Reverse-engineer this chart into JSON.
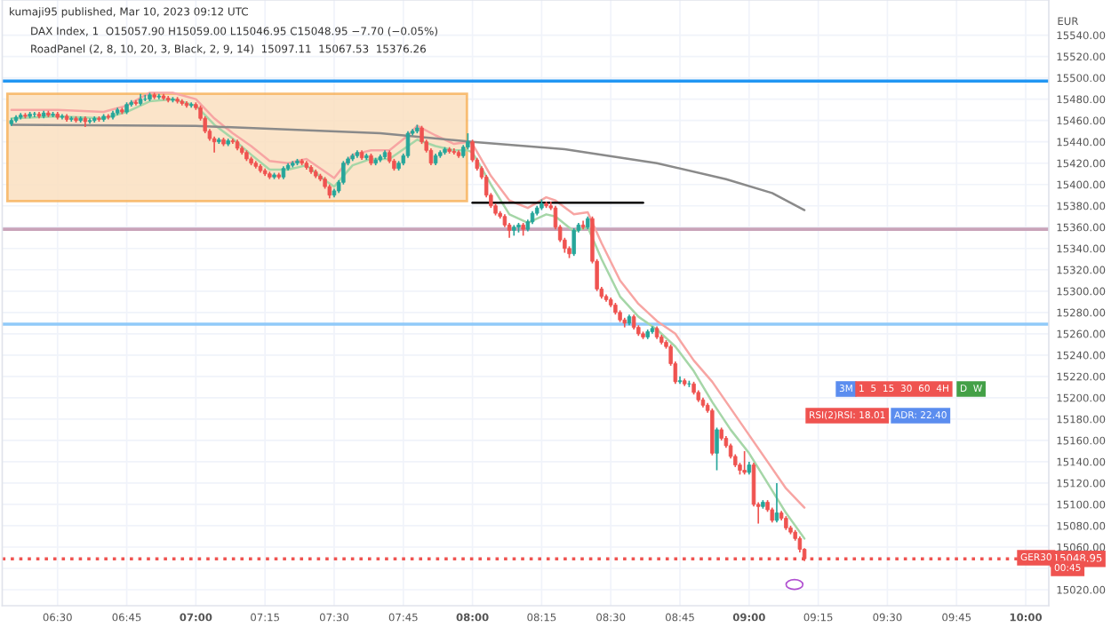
{
  "chart_data": {
    "type": "candlestick",
    "annotations": [
      "kumaji95 published, Mar 10, 2023 09:12 UTC",
      "DAX Index, 1  O15057.90 H15059.00 L15046.95 C15048.95 −7.70 (−0.05%)",
      "RoadPanel (2, 8, 10, 20, 3, Black, 2, 9, 14)  15097.11  15067.53  15376.26",
      "3M",
      "1  5  15  30  60  4H",
      "D  W",
      "RSI(2)RSI: 18.01",
      "ADR: 22.40",
      "GER30",
      "00:45"
    ],
    "ylabel": "EUR",
    "x": [
      "2023-03-10T06:20",
      "2023-03-10T06:21",
      "2023-03-10T06:22",
      "2023-03-10T06:23",
      "2023-03-10T06:24",
      "2023-03-10T06:25",
      "2023-03-10T06:26",
      "2023-03-10T06:27",
      "2023-03-10T06:28",
      "2023-03-10T06:29",
      "2023-03-10T06:30",
      "2023-03-10T06:31",
      "2023-03-10T06:32",
      "2023-03-10T06:33",
      "2023-03-10T06:34",
      "2023-03-10T06:35",
      "2023-03-10T06:36",
      "2023-03-10T06:37",
      "2023-03-10T06:38",
      "2023-03-10T06:39",
      "2023-03-10T06:40",
      "2023-03-10T06:41",
      "2023-03-10T06:42",
      "2023-03-10T06:43",
      "2023-03-10T06:44",
      "2023-03-10T06:45",
      "2023-03-10T06:46",
      "2023-03-10T06:47",
      "2023-03-10T06:48",
      "2023-03-10T06:49",
      "2023-03-10T06:50",
      "2023-03-10T06:51",
      "2023-03-10T06:52",
      "2023-03-10T06:53",
      "2023-03-10T06:54",
      "2023-03-10T06:55",
      "2023-03-10T06:56",
      "2023-03-10T06:57",
      "2023-03-10T06:58",
      "2023-03-10T06:59",
      "2023-03-10T07:00",
      "2023-03-10T07:01",
      "2023-03-10T07:02",
      "2023-03-10T07:03",
      "2023-03-10T07:04",
      "2023-03-10T07:05",
      "2023-03-10T07:06",
      "2023-03-10T07:07",
      "2023-03-10T07:08",
      "2023-03-10T07:09",
      "2023-03-10T07:10",
      "2023-03-10T07:11",
      "2023-03-10T07:12",
      "2023-03-10T07:13",
      "2023-03-10T07:14",
      "2023-03-10T07:15",
      "2023-03-10T07:16",
      "2023-03-10T07:17",
      "2023-03-10T07:18",
      "2023-03-10T07:19",
      "2023-03-10T07:20",
      "2023-03-10T07:21",
      "2023-03-10T07:22",
      "2023-03-10T07:23",
      "2023-03-10T07:24",
      "2023-03-10T07:25",
      "2023-03-10T07:26",
      "2023-03-10T07:27",
      "2023-03-10T07:28",
      "2023-03-10T07:29",
      "2023-03-10T07:30",
      "2023-03-10T07:31",
      "2023-03-10T07:32",
      "2023-03-10T07:33",
      "2023-03-10T07:34",
      "2023-03-10T07:35",
      "2023-03-10T07:36",
      "2023-03-10T07:37",
      "2023-03-10T07:38",
      "2023-03-10T07:39",
      "2023-03-10T07:40",
      "2023-03-10T07:41",
      "2023-03-10T07:42",
      "2023-03-10T07:43",
      "2023-03-10T07:44",
      "2023-03-10T07:45",
      "2023-03-10T07:46",
      "2023-03-10T07:47",
      "2023-03-10T07:48",
      "2023-03-10T07:49",
      "2023-03-10T07:50",
      "2023-03-10T07:51",
      "2023-03-10T07:52",
      "2023-03-10T07:53",
      "2023-03-10T07:54",
      "2023-03-10T07:55",
      "2023-03-10T07:56",
      "2023-03-10T07:57",
      "2023-03-10T07:58",
      "2023-03-10T07:59",
      "2023-03-10T08:00",
      "2023-03-10T08:01",
      "2023-03-10T08:02",
      "2023-03-10T08:03",
      "2023-03-10T08:04",
      "2023-03-10T08:05",
      "2023-03-10T08:06",
      "2023-03-10T08:07",
      "2023-03-10T08:08",
      "2023-03-10T08:09",
      "2023-03-10T08:10",
      "2023-03-10T08:11",
      "2023-03-10T08:12",
      "2023-03-10T08:13",
      "2023-03-10T08:14",
      "2023-03-10T08:15",
      "2023-03-10T08:16",
      "2023-03-10T08:17",
      "2023-03-10T08:18",
      "2023-03-10T08:19",
      "2023-03-10T08:20",
      "2023-03-10T08:21",
      "2023-03-10T08:22",
      "2023-03-10T08:23",
      "2023-03-10T08:24",
      "2023-03-10T08:25",
      "2023-03-10T08:26",
      "2023-03-10T08:27",
      "2023-03-10T08:28",
      "2023-03-10T08:29",
      "2023-03-10T08:30",
      "2023-03-10T08:31",
      "2023-03-10T08:32",
      "2023-03-10T08:33",
      "2023-03-10T08:34",
      "2023-03-10T08:35",
      "2023-03-10T08:36",
      "2023-03-10T08:37",
      "2023-03-10T08:38",
      "2023-03-10T08:39",
      "2023-03-10T08:40",
      "2023-03-10T08:41",
      "2023-03-10T08:42",
      "2023-03-10T08:43",
      "2023-03-10T08:44",
      "2023-03-10T08:45",
      "2023-03-10T08:46",
      "2023-03-10T08:47",
      "2023-03-10T08:48",
      "2023-03-10T08:49",
      "2023-03-10T08:50",
      "2023-03-10T08:51",
      "2023-03-10T08:52",
      "2023-03-10T08:53",
      "2023-03-10T08:54",
      "2023-03-10T08:55",
      "2023-03-10T08:56",
      "2023-03-10T08:57",
      "2023-03-10T08:58",
      "2023-03-10T08:59",
      "2023-03-10T09:00",
      "2023-03-10T09:01",
      "2023-03-10T09:02",
      "2023-03-10T09:03",
      "2023-03-10T09:04",
      "2023-03-10T09:05",
      "2023-03-10T09:06",
      "2023-03-10T09:07",
      "2023-03-10T09:08",
      "2023-03-10T09:09",
      "2023-03-10T09:10",
      "2023-03-10T09:11",
      "2023-03-10T09:12"
    ],
    "ohlc": [
      [
        15457,
        15462,
        15455,
        15460
      ],
      [
        15460,
        15465,
        15458,
        15463
      ],
      [
        15463,
        15467,
        15461,
        15465
      ],
      [
        15465,
        15467,
        15462,
        15464
      ],
      [
        15464,
        15468,
        15462,
        15466
      ],
      [
        15466,
        15468,
        15463,
        15466
      ],
      [
        15466,
        15468,
        15462,
        15464
      ],
      [
        15464,
        15469,
        15462,
        15467
      ],
      [
        15467,
        15469,
        15463,
        15465
      ],
      [
        15465,
        15468,
        15463,
        15466
      ],
      [
        15466,
        15468,
        15461,
        15463
      ],
      [
        15463,
        15466,
        15461,
        15464
      ],
      [
        15464,
        15466,
        15459,
        15461
      ],
      [
        15461,
        15464,
        15459,
        15462
      ],
      [
        15462,
        15464,
        15458,
        15460
      ],
      [
        15460,
        15464,
        15458,
        15462
      ],
      [
        15462,
        15464,
        15454,
        15459
      ],
      [
        15459,
        15462,
        15457,
        15460
      ],
      [
        15460,
        15464,
        15458,
        15462
      ],
      [
        15462,
        15464,
        15459,
        15461
      ],
      [
        15461,
        15466,
        15459,
        15464
      ],
      [
        15464,
        15466,
        15461,
        15463
      ],
      [
        15463,
        15469,
        15461,
        15467
      ],
      [
        15467,
        15472,
        15465,
        15470
      ],
      [
        15470,
        15472,
        15466,
        15468
      ],
      [
        15468,
        15477,
        15466,
        15475
      ],
      [
        15475,
        15479,
        15473,
        15477
      ],
      [
        15477,
        15479,
        15474,
        15476
      ],
      [
        15476,
        15485,
        15474,
        15480
      ],
      [
        15480,
        15484,
        15478,
        15480
      ],
      [
        15480,
        15486,
        15478,
        15484
      ],
      [
        15484,
        15486,
        15480,
        15482
      ],
      [
        15482,
        15485,
        15480,
        15483
      ],
      [
        15483,
        15485,
        15479,
        15481
      ],
      [
        15481,
        15483,
        15477,
        15479
      ],
      [
        15479,
        15482,
        15477,
        15480
      ],
      [
        15480,
        15482,
        15476,
        15478
      ],
      [
        15478,
        15480,
        15474,
        15476
      ],
      [
        15476,
        15478,
        15472,
        15474
      ],
      [
        15474,
        15477,
        15472,
        15475
      ],
      [
        15475,
        15477,
        15470,
        15472
      ],
      [
        15472,
        15474,
        15460,
        15462
      ],
      [
        15462,
        15464,
        15448,
        15450
      ],
      [
        15450,
        15452,
        15441,
        15443
      ],
      [
        15443,
        15445,
        15430,
        15440
      ],
      [
        15440,
        15444,
        15438,
        15442
      ],
      [
        15442,
        15444,
        15436,
        15438
      ],
      [
        15438,
        15443,
        15436,
        15441
      ],
      [
        15441,
        15443,
        15438,
        15440
      ],
      [
        15440,
        15442,
        15432,
        15434
      ],
      [
        15434,
        15436,
        15428,
        15430
      ],
      [
        15430,
        15432,
        15422,
        15424
      ],
      [
        15424,
        15426,
        15418,
        15420
      ],
      [
        15420,
        15422,
        15415,
        15417
      ],
      [
        15417,
        15419,
        15411,
        15413
      ],
      [
        15413,
        15415,
        15408,
        15410
      ],
      [
        15410,
        15412,
        15405,
        15407
      ],
      [
        15407,
        15411,
        15405,
        15409
      ],
      [
        15409,
        15411,
        15405,
        15407
      ],
      [
        15407,
        15417,
        15405,
        15415
      ],
      [
        15415,
        15420,
        15413,
        15418
      ],
      [
        15418,
        15422,
        15416,
        15420
      ],
      [
        15420,
        15424,
        15418,
        15422
      ],
      [
        15422,
        15424,
        15418,
        15420
      ],
      [
        15420,
        15422,
        15414,
        15416
      ],
      [
        15416,
        15418,
        15410,
        15412
      ],
      [
        15412,
        15414,
        15406,
        15408
      ],
      [
        15408,
        15410,
        15403,
        15405
      ],
      [
        15405,
        15407,
        15396,
        15398
      ],
      [
        15398,
        15400,
        15387,
        15390
      ],
      [
        15390,
        15396,
        15388,
        15394
      ],
      [
        15394,
        15404,
        15392,
        15402
      ],
      [
        15402,
        15422,
        15400,
        15420
      ],
      [
        15420,
        15426,
        15418,
        15424
      ],
      [
        15424,
        15429,
        15422,
        15427
      ],
      [
        15427,
        15432,
        15425,
        15430
      ],
      [
        15430,
        15432,
        15423,
        15425
      ],
      [
        15425,
        15429,
        15423,
        15427
      ],
      [
        15427,
        15429,
        15418,
        15420
      ],
      [
        15420,
        15425,
        15418,
        15423
      ],
      [
        15423,
        15428,
        15421,
        15426
      ],
      [
        15426,
        15432,
        15424,
        15430
      ],
      [
        15430,
        15432,
        15420,
        15422
      ],
      [
        15422,
        15424,
        15413,
        15415
      ],
      [
        15415,
        15422,
        15413,
        15420
      ],
      [
        15420,
        15429,
        15418,
        15427
      ],
      [
        15427,
        15450,
        15425,
        15448
      ],
      [
        15448,
        15452,
        15446,
        15450
      ],
      [
        15450,
        15456,
        15448,
        15453
      ],
      [
        15453,
        15455,
        15438,
        15440
      ],
      [
        15440,
        15442,
        15430,
        15432
      ],
      [
        15432,
        15434,
        15418,
        15420
      ],
      [
        15420,
        15429,
        15418,
        15427
      ],
      [
        15427,
        15432,
        15425,
        15430
      ],
      [
        15430,
        15435,
        15428,
        15433
      ],
      [
        15433,
        15435,
        15429,
        15431
      ],
      [
        15431,
        15434,
        15428,
        15430
      ],
      [
        15430,
        15432,
        15425,
        15427
      ],
      [
        15427,
        15437,
        15425,
        15435
      ],
      [
        15435,
        15448,
        15433,
        15440
      ],
      [
        15440,
        15442,
        15421,
        15423
      ],
      [
        15423,
        15425,
        15413,
        15415
      ],
      [
        15415,
        15417,
        15405,
        15407
      ],
      [
        15407,
        15409,
        15388,
        15390
      ],
      [
        15390,
        15392,
        15378,
        15380
      ],
      [
        15380,
        15382,
        15371,
        15373
      ],
      [
        15373,
        15375,
        15368,
        15370
      ],
      [
        15370,
        15372,
        15360,
        15362
      ],
      [
        15362,
        15364,
        15350,
        15357
      ],
      [
        15357,
        15362,
        15352,
        15360
      ],
      [
        15360,
        15364,
        15355,
        15362
      ],
      [
        15362,
        15364,
        15352,
        15358
      ],
      [
        15358,
        15367,
        15356,
        15365
      ],
      [
        15365,
        15375,
        15363,
        15373
      ],
      [
        15373,
        15380,
        15371,
        15378
      ],
      [
        15378,
        15386,
        15376,
        15382
      ],
      [
        15382,
        15384,
        15378,
        15380
      ],
      [
        15380,
        15384,
        15376,
        15378
      ],
      [
        15378,
        15380,
        15358,
        15360
      ],
      [
        15360,
        15362,
        15346,
        15348
      ],
      [
        15348,
        15350,
        15336,
        15340
      ],
      [
        15340,
        15342,
        15331,
        15335
      ],
      [
        15335,
        15359,
        15333,
        15357
      ],
      [
        15357,
        15364,
        15355,
        15362
      ],
      [
        15362,
        15366,
        15358,
        15360
      ],
      [
        15360,
        15370,
        15358,
        15368
      ],
      [
        15368,
        15370,
        15326,
        15328
      ],
      [
        15328,
        15330,
        15300,
        15302
      ],
      [
        15302,
        15304,
        15293,
        15295
      ],
      [
        15295,
        15297,
        15290,
        15292
      ],
      [
        15292,
        15294,
        15285,
        15287
      ],
      [
        15287,
        15289,
        15278,
        15280
      ],
      [
        15280,
        15282,
        15271,
        15273
      ],
      [
        15273,
        15275,
        15266,
        15270
      ],
      [
        15270,
        15278,
        15268,
        15276
      ],
      [
        15276,
        15278,
        15264,
        15266
      ],
      [
        15266,
        15268,
        15258,
        15260
      ],
      [
        15260,
        15262,
        15255,
        15257
      ],
      [
        15257,
        15264,
        15255,
        15262
      ],
      [
        15262,
        15267,
        15260,
        15265
      ],
      [
        15265,
        15267,
        15255,
        15257
      ],
      [
        15257,
        15259,
        15250,
        15252
      ],
      [
        15252,
        15254,
        15246,
        15248
      ],
      [
        15248,
        15250,
        15230,
        15232
      ],
      [
        15232,
        15234,
        15213,
        15215
      ],
      [
        15215,
        15220,
        15213,
        15216
      ],
      [
        15216,
        15218,
        15211,
        15213
      ],
      [
        15213,
        15216,
        15210,
        15213
      ],
      [
        15213,
        15215,
        15203,
        15205
      ],
      [
        15205,
        15207,
        15196,
        15198
      ],
      [
        15198,
        15200,
        15191,
        15193
      ],
      [
        15193,
        15195,
        15186,
        15188
      ],
      [
        15188,
        15190,
        15146,
        15148
      ],
      [
        15148,
        15172,
        15132,
        15170
      ],
      [
        15170,
        15172,
        15160,
        15162
      ],
      [
        15162,
        15164,
        15153,
        15155
      ],
      [
        15155,
        15157,
        15143,
        15145
      ],
      [
        15145,
        15147,
        15135,
        15137
      ],
      [
        15137,
        15139,
        15128,
        15132
      ],
      [
        15132,
        15150,
        15128,
        15130
      ],
      [
        15130,
        15140,
        15128,
        15137
      ],
      [
        15137,
        15139,
        15098,
        15100
      ],
      [
        15100,
        15102,
        15082,
        15098
      ],
      [
        15098,
        15104,
        15096,
        15102
      ],
      [
        15102,
        15104,
        15093,
        15095
      ],
      [
        15095,
        15097,
        15083,
        15085
      ],
      [
        15085,
        15120,
        15083,
        15092
      ],
      [
        15092,
        15094,
        15085,
        15087
      ],
      [
        15087,
        15089,
        15076,
        15078
      ],
      [
        15078,
        15080,
        15072,
        15074
      ],
      [
        15074,
        15076,
        15066,
        15068
      ],
      [
        15068,
        15070,
        15055,
        15057.9
      ],
      [
        15057.9,
        15059,
        15046.95,
        15048.95
      ]
    ],
    "series": [
      {
        "type": "line",
        "color": "#f7a5a3",
        "x": [
          "2023-03-10T06:20",
          "2023-03-10T06:30",
          "2023-03-10T06:40",
          "2023-03-10T06:45",
          "2023-03-10T06:50",
          "2023-03-10T06:55",
          "2023-03-10T07:00",
          "2023-03-10T07:04",
          "2023-03-10T07:08",
          "2023-03-10T07:12",
          "2023-03-10T07:16",
          "2023-03-10T07:20",
          "2023-03-10T07:24",
          "2023-03-10T07:28",
          "2023-03-10T07:30",
          "2023-03-10T07:34",
          "2023-03-10T07:38",
          "2023-03-10T07:42",
          "2023-03-10T07:46",
          "2023-03-10T07:48",
          "2023-03-10T07:52",
          "2023-03-10T07:56",
          "2023-03-10T07:59",
          "2023-03-10T08:00",
          "2023-03-10T08:04",
          "2023-03-10T08:08",
          "2023-03-10T08:12",
          "2023-03-10T08:16",
          "2023-03-10T08:18",
          "2023-03-10T08:22",
          "2023-03-10T08:25",
          "2023-03-10T08:28",
          "2023-03-10T08:32",
          "2023-03-10T08:36",
          "2023-03-10T08:40",
          "2023-03-10T08:44",
          "2023-03-10T08:48",
          "2023-03-10T08:52",
          "2023-03-10T08:56",
          "2023-03-10T09:00",
          "2023-03-10T09:04",
          "2023-03-10T09:08",
          "2023-03-10T09:12"
        ],
        "values": [
          15470,
          15470,
          15468,
          15474,
          15486,
          15486,
          15480,
          15462,
          15448,
          15436,
          15422,
          15420,
          15424,
          15412,
          15406,
          15428,
          15432,
          15432,
          15446,
          15455,
          15446,
          15438,
          15440,
          15438,
          15408,
          15385,
          15378,
          15388,
          15385,
          15372,
          15374,
          15345,
          15310,
          15288,
          15272,
          15260,
          15235,
          15215,
          15190,
          15165,
          15140,
          15115,
          15097
        ]
      },
      {
        "type": "line",
        "color": "#a5d6a7",
        "x": [
          "2023-03-10T06:20",
          "2023-03-10T06:30",
          "2023-03-10T06:40",
          "2023-03-10T06:45",
          "2023-03-10T06:50",
          "2023-03-10T06:55",
          "2023-03-10T07:00",
          "2023-03-10T07:04",
          "2023-03-10T07:08",
          "2023-03-10T07:12",
          "2023-03-10T07:16",
          "2023-03-10T07:20",
          "2023-03-10T07:24",
          "2023-03-10T07:28",
          "2023-03-10T07:30",
          "2023-03-10T07:34",
          "2023-03-10T07:38",
          "2023-03-10T07:42",
          "2023-03-10T07:46",
          "2023-03-10T07:48",
          "2023-03-10T07:52",
          "2023-03-10T07:56",
          "2023-03-10T07:59",
          "2023-03-10T08:00",
          "2023-03-10T08:04",
          "2023-03-10T08:08",
          "2023-03-10T08:12",
          "2023-03-10T08:16",
          "2023-03-10T08:18",
          "2023-03-10T08:22",
          "2023-03-10T08:25",
          "2023-03-10T08:28",
          "2023-03-10T08:32",
          "2023-03-10T08:36",
          "2023-03-10T08:40",
          "2023-03-10T08:44",
          "2023-03-10T08:48",
          "2023-03-10T08:52",
          "2023-03-10T08:56",
          "2023-03-10T09:00",
          "2023-03-10T09:04",
          "2023-03-10T09:08",
          "2023-03-10T09:12"
        ],
        "values": [
          15462,
          15464,
          15462,
          15468,
          15478,
          15480,
          15474,
          15456,
          15443,
          15428,
          15414,
          15414,
          15418,
          15404,
          15398,
          15418,
          15424,
          15424,
          15436,
          15442,
          15436,
          15432,
          15432,
          15430,
          15400,
          15372,
          15364,
          15372,
          15370,
          15356,
          15360,
          15330,
          15295,
          15276,
          15264,
          15248,
          15225,
          15196,
          15170,
          15148,
          15120,
          15092,
          15068
        ]
      },
      {
        "type": "line",
        "color": "#8a8a8a",
        "x": [
          "2023-03-10T06:20",
          "2023-03-10T07:00",
          "2023-03-10T07:40",
          "2023-03-10T08:00",
          "2023-03-10T08:20",
          "2023-03-10T08:40",
          "2023-03-10T08:55",
          "2023-03-10T09:05",
          "2023-03-10T09:12"
        ],
        "values": [
          15456,
          15455,
          15448,
          15440,
          15433,
          15420,
          15405,
          15392,
          15376
        ]
      },
      {
        "type": "line",
        "color": "#000000",
        "x": [
          "2023-03-10T08:00",
          "2023-03-10T08:37"
        ],
        "values": [
          15383,
          15383
        ]
      }
    ],
    "ref_lines": [
      {
        "axis": "y",
        "value": 15497,
        "color": "#2196f3"
      },
      {
        "axis": "y",
        "value": 15358,
        "color": "#c9a3b9"
      },
      {
        "axis": "y",
        "value": 15269,
        "color": "#90caf9"
      },
      {
        "axis": "y",
        "value": 15048.95,
        "label": "15048.95",
        "color": "#ef5350",
        "line_style": "dotted"
      }
    ],
    "xlim": [
      "2023-03-10T06:18",
      "2023-03-10T10:05"
    ],
    "xticks": [
      {
        "value": "2023-03-10T06:30",
        "label": "06:30"
      },
      {
        "value": "2023-03-10T06:45",
        "label": "06:45"
      },
      {
        "value": "2023-03-10T07:00",
        "label": "07:00"
      },
      {
        "value": "2023-03-10T07:15",
        "label": "07:15"
      },
      {
        "value": "2023-03-10T07:30",
        "label": "07:30"
      },
      {
        "value": "2023-03-10T07:45",
        "label": "07:45"
      },
      {
        "value": "2023-03-10T08:00",
        "label": "08:00"
      },
      {
        "value": "2023-03-10T08:15",
        "label": "08:15"
      },
      {
        "value": "2023-03-10T08:30",
        "label": "08:30"
      },
      {
        "value": "2023-03-10T08:45",
        "label": "08:45"
      },
      {
        "value": "2023-03-10T09:00",
        "label": "09:00"
      },
      {
        "value": "2023-03-10T09:15",
        "label": "09:15"
      },
      {
        "value": "2023-03-10T09:30",
        "label": "09:30"
      },
      {
        "value": "2023-03-10T09:45",
        "label": "09:45"
      },
      {
        "value": "2023-03-10T10:00",
        "label": "10:00"
      }
    ],
    "ylim": [
      15005,
      15573
    ],
    "yticks": [
      {
        "value": 15020,
        "label": "15020.00"
      },
      {
        "value": 15040,
        "label": null
      },
      {
        "value": 15060,
        "label": "15060.00"
      },
      {
        "value": 15080,
        "label": "15080.00"
      },
      {
        "value": 15100,
        "label": "15100.00"
      },
      {
        "value": 15120,
        "label": "15120.00"
      },
      {
        "value": 15140,
        "label": "15140.00"
      },
      {
        "value": 15160,
        "label": "15160.00"
      },
      {
        "value": 15180,
        "label": "15180.00"
      },
      {
        "value": 15200,
        "label": "15200.00"
      },
      {
        "value": 15220,
        "label": "15220.00"
      },
      {
        "value": 15240,
        "label": "15240.00"
      },
      {
        "value": 15260,
        "label": "15260.00"
      },
      {
        "value": 15280,
        "label": "15280.00"
      },
      {
        "value": 15300,
        "label": "15300.00"
      },
      {
        "value": 15320,
        "label": "15320.00"
      },
      {
        "value": 15340,
        "label": "15340.00"
      },
      {
        "value": 15360,
        "label": "15360.00"
      },
      {
        "value": 15380,
        "label": "15380.00"
      },
      {
        "value": 15400,
        "label": "15400.00"
      },
      {
        "value": 15420,
        "label": "15420.00"
      },
      {
        "value": 15440,
        "label": "15440.00"
      },
      {
        "value": 15460,
        "label": "15460.00"
      },
      {
        "value": 15480,
        "label": "15480.00"
      },
      {
        "value": 15500,
        "label": "15500.00"
      },
      {
        "value": 15520,
        "label": "15520.00"
      },
      {
        "value": 15540,
        "label": "15540.00"
      }
    ],
    "grid": true
  }
}
